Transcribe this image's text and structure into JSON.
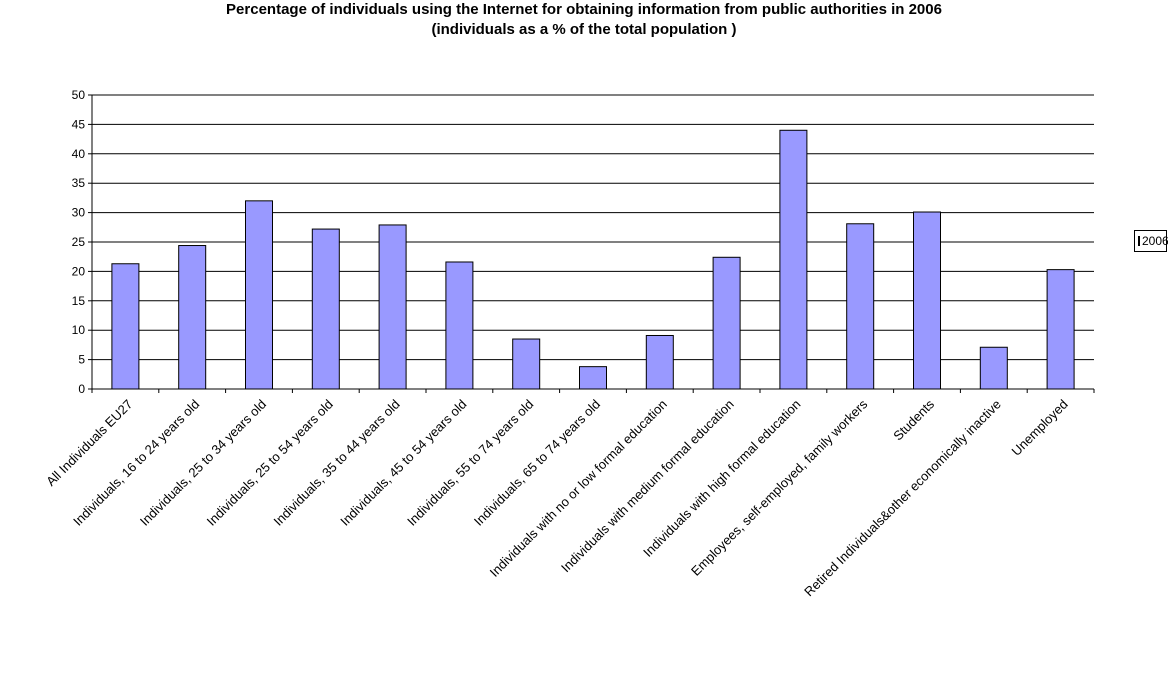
{
  "chart_data": {
    "type": "bar",
    "title": "Percentage of individuals using the Internet for obtaining information from public authorities in 2006",
    "subtitle": "(individuals as a % of the total population )",
    "xlabel": "",
    "ylabel": "",
    "ylim": [
      0,
      50
    ],
    "yticks": [
      0,
      5,
      10,
      15,
      20,
      25,
      30,
      35,
      40,
      45,
      50
    ],
    "grid": true,
    "legend_position": "right",
    "bar_color": "#9999ff",
    "categories": [
      "All Individuals EU27",
      "Individuals, 16 to 24 years old",
      "Individuals, 25 to 34 years old",
      "Individuals, 25 to 54 years old",
      "Individuals, 35 to 44 years old",
      "Individuals, 45 to 54 years old",
      "Individuals, 55 to 74 years old",
      "Individuals, 65 to 74 years old",
      "Individuals with no or low formal education",
      "Individuals with medium formal education",
      "Individuals with high formal education",
      "Employees, self-employed, family workers",
      "Students",
      "Retired Individuals&other economically inactive",
      "Unemployed"
    ],
    "series": [
      {
        "name": "2006",
        "values": [
          21.3,
          24.4,
          32,
          27.2,
          27.9,
          21.6,
          8.5,
          3.8,
          9.1,
          22.4,
          44,
          28.1,
          30.1,
          7.1,
          20.3
        ]
      }
    ]
  }
}
